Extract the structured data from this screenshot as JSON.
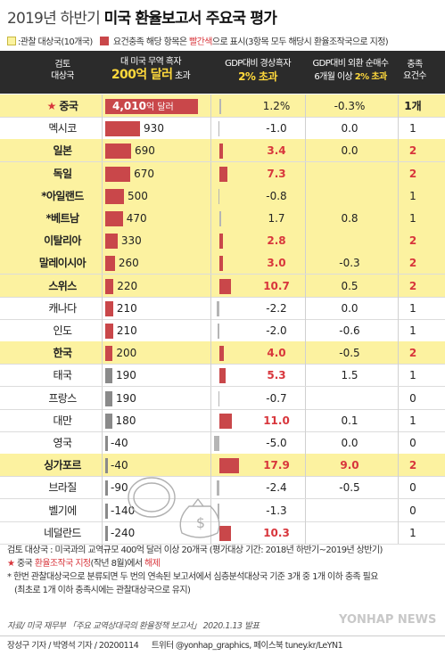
{
  "title": {
    "part1": "2019년 하반기",
    "part2": "미국 환율보고서 주요국 평가"
  },
  "legend": {
    "observation_label": ":관찰 대상국(10개국)",
    "criteria_prefix": "요건충족 해당 항목은",
    "criteria_red": "빨간색",
    "criteria_suffix": "으로 표시(3항목 모두 해당시 환율조작국으로 지정)"
  },
  "header": {
    "col_country": [
      "검토",
      "대상국"
    ],
    "col_trade": {
      "line1": "대 미국 무역 흑자",
      "big": "200억 달러",
      "suffix": " 초과"
    },
    "col_gdp": {
      "line1": "GDP대비 경상흑자",
      "yellow": "2% 초과"
    },
    "col_fx": {
      "line1": "GDP대비 외환 순매수",
      "line2_prefix": "6개월 이상 ",
      "line2_yellow": "2% 초과"
    },
    "col_count": [
      "충족",
      "요건수"
    ]
  },
  "chart_data": {
    "type": "table",
    "columns": [
      "검토 대상국",
      "대 미국 무역 흑자(억 달러)",
      "GDP대비 경상흑자(%)",
      "GDP대비 외환 순매수(%)",
      "충족 요건수"
    ],
    "rows": [
      {
        "country": "중국",
        "star": "★",
        "trade": 4010,
        "trade_label": "4,010",
        "trade_unit": "억 달러",
        "gdp": "1.2%",
        "fx": "-0.3%",
        "count": "1개",
        "highlight": true,
        "trade_met": true,
        "gdp_met": false,
        "fx_met": false,
        "count_red": false
      },
      {
        "country": "멕시코",
        "trade": 930,
        "trade_label": "930",
        "gdp": "-1.0",
        "fx": "0.0",
        "count": "1",
        "highlight": false,
        "trade_met": true,
        "gdp_met": false,
        "fx_met": false,
        "count_red": false
      },
      {
        "country": "일본",
        "trade": 690,
        "trade_label": "690",
        "gdp": "3.4",
        "fx": "0.0",
        "count": "2",
        "highlight": true,
        "trade_met": true,
        "gdp_met": true,
        "fx_met": false,
        "count_red": true
      },
      {
        "country": "독일",
        "trade": 670,
        "trade_label": "670",
        "gdp": "7.3",
        "fx": "",
        "count": "2",
        "highlight": true,
        "trade_met": true,
        "gdp_met": true,
        "fx_met": false,
        "count_red": true
      },
      {
        "country": "*아일랜드",
        "trade": 500,
        "trade_label": "500",
        "gdp": "-0.8",
        "fx": "",
        "count": "1",
        "highlight": true,
        "trade_met": true,
        "gdp_met": false,
        "fx_met": false,
        "count_red": false
      },
      {
        "country": "*베트남",
        "trade": 470,
        "trade_label": "470",
        "gdp": "1.7",
        "fx": "0.8",
        "count": "1",
        "highlight": true,
        "trade_met": true,
        "gdp_met": false,
        "fx_met": false,
        "count_red": false
      },
      {
        "country": "이탈리아",
        "trade": 330,
        "trade_label": "330",
        "gdp": "2.8",
        "fx": "",
        "count": "2",
        "highlight": true,
        "trade_met": true,
        "gdp_met": true,
        "fx_met": false,
        "count_red": true
      },
      {
        "country": "말레이시아",
        "trade": 260,
        "trade_label": "260",
        "gdp": "3.0",
        "fx": "-0.3",
        "count": "2",
        "highlight": true,
        "trade_met": true,
        "gdp_met": true,
        "fx_met": false,
        "count_red": true
      },
      {
        "country": "스위스",
        "trade": 220,
        "trade_label": "220",
        "gdp": "10.7",
        "fx": "0.5",
        "count": "2",
        "highlight": true,
        "trade_met": true,
        "gdp_met": true,
        "fx_met": false,
        "count_red": true
      },
      {
        "country": "캐나다",
        "trade": 210,
        "trade_label": "210",
        "gdp": "-2.2",
        "fx": "0.0",
        "count": "1",
        "highlight": false,
        "trade_met": true,
        "gdp_met": false,
        "fx_met": false,
        "count_red": false
      },
      {
        "country": "인도",
        "trade": 210,
        "trade_label": "210",
        "gdp": "-2.0",
        "fx": "-0.6",
        "count": "1",
        "highlight": false,
        "trade_met": true,
        "gdp_met": false,
        "fx_met": false,
        "count_red": false
      },
      {
        "country": "한국",
        "trade": 200,
        "trade_label": "200",
        "gdp": "4.0",
        "fx": "-0.5",
        "count": "2",
        "highlight": true,
        "trade_met": true,
        "gdp_met": true,
        "fx_met": false,
        "count_red": true
      },
      {
        "country": "태국",
        "trade": 190,
        "trade_label": "190",
        "gdp": "5.3",
        "fx": "1.5",
        "count": "1",
        "highlight": false,
        "trade_met": false,
        "gdp_met": true,
        "fx_met": false,
        "count_red": false
      },
      {
        "country": "프랑스",
        "trade": 190,
        "trade_label": "190",
        "gdp": "-0.7",
        "fx": "",
        "count": "0",
        "highlight": false,
        "trade_met": false,
        "gdp_met": false,
        "fx_met": false,
        "count_red": false
      },
      {
        "country": "대만",
        "trade": 180,
        "trade_label": "180",
        "gdp": "11.0",
        "fx": "0.1",
        "count": "1",
        "highlight": false,
        "trade_met": false,
        "gdp_met": true,
        "fx_met": false,
        "count_red": false
      },
      {
        "country": "영국",
        "trade": -40,
        "trade_label": "-40",
        "gdp": "-5.0",
        "fx": "0.0",
        "count": "0",
        "highlight": false,
        "trade_met": false,
        "gdp_met": false,
        "fx_met": false,
        "count_red": false
      },
      {
        "country": "싱가포르",
        "trade": -40,
        "trade_label": "-40",
        "gdp": "17.9",
        "fx": "9.0",
        "count": "2",
        "highlight": true,
        "trade_met": false,
        "gdp_met": true,
        "fx_met": true,
        "count_red": true
      },
      {
        "country": "브라질",
        "trade": -90,
        "trade_label": "-90",
        "gdp": "-2.4",
        "fx": "-0.5",
        "count": "0",
        "highlight": false,
        "trade_met": false,
        "gdp_met": false,
        "fx_met": false,
        "count_red": false
      },
      {
        "country": "벨기에",
        "trade": -140,
        "trade_label": "-140",
        "gdp": "-1.3",
        "fx": "",
        "count": "0",
        "highlight": false,
        "trade_met": false,
        "gdp_met": false,
        "fx_met": false,
        "count_red": false
      },
      {
        "country": "네덜란드",
        "trade": -240,
        "trade_label": "-240",
        "gdp": "10.3",
        "fx": "",
        "count": "1",
        "highlight": false,
        "trade_met": false,
        "gdp_met": true,
        "fx_met": false,
        "count_red": false
      }
    ]
  },
  "notes": {
    "note1": "검토 대상국 : 미국과의 교역규모 400억 달러 이상 20개국 (평가대상 기간: 2018년 하반기~2019년 상반기)",
    "note2_star": "★",
    "note2_a": " 중국 ",
    "note2_b": "환율조작국 지정",
    "note2_c": "(작년 8월)에서 ",
    "note2_d": "해제",
    "note3": "* 한번 관찰대상국으로 분류되면 두 번의 연속된 보고서에서 심층분석대상국 기준 3개 중 1개 이하 충족 필요",
    "note4": "(최초로 1개 이하 충족시에는 관찰대상국으로 유지)"
  },
  "footer": {
    "source": "자료/ 미국 재무부 「주요 교역상대국의 환율정책 보고서」 2020.1.13 발표",
    "credit": "장성구 기자 / 박영석 기자 / 20200114",
    "social": "트위터 @yonhap_graphics, 페이스북 tuney.kr/LeYN1",
    "watermark": "YONHAP NEWS"
  },
  "colors": {
    "red": "#c9474a",
    "gray": "#8a8a8a",
    "highlight": "#fcf2a0",
    "header": "#2b2b2b"
  }
}
